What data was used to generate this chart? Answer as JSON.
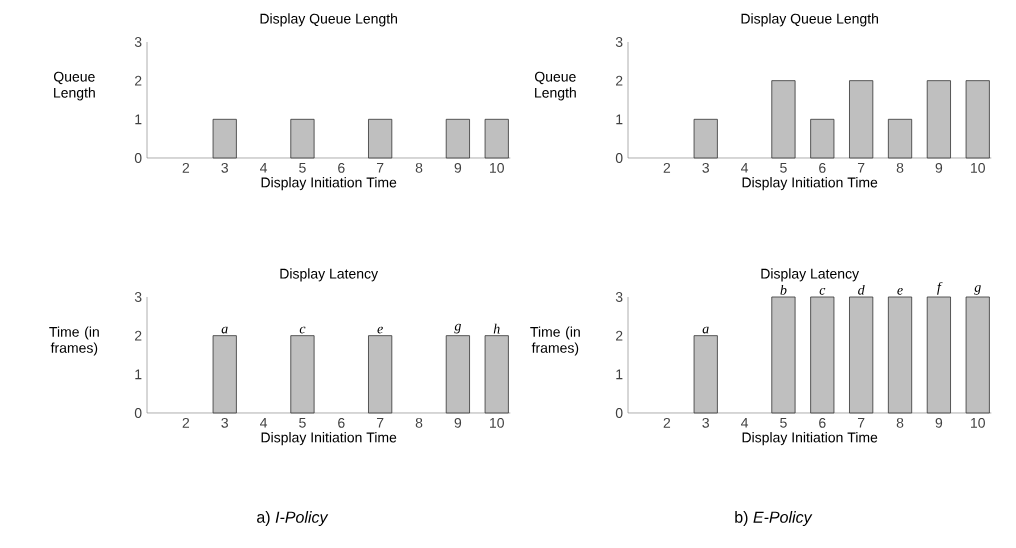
{
  "chart_data": [
    {
      "type": "bar",
      "title": "Display Queue Length",
      "xlabel": "Display Initiation Time",
      "ylabel": "Queue Length",
      "categories": [
        null,
        "2",
        "3",
        "4",
        "5",
        "6",
        "7",
        "8",
        "9",
        "10"
      ],
      "values": [
        null,
        null,
        1,
        null,
        1,
        null,
        1,
        null,
        1,
        1
      ],
      "color": "#bfbfbf",
      "ylim": [
        0,
        3
      ],
      "yticks": [
        0,
        1,
        2,
        3
      ]
    },
    {
      "type": "bar",
      "title": "Display Queue Length",
      "xlabel": "Display Initiation Time",
      "ylabel": "Queue Length",
      "categories": [
        null,
        "2",
        "3",
        "4",
        "5",
        "6",
        "7",
        "8",
        "9",
        "10"
      ],
      "values": [
        null,
        null,
        1,
        null,
        2,
        1,
        2,
        1,
        2,
        2
      ],
      "color": "#bfbfbf",
      "ylim": [
        0,
        3
      ],
      "yticks": [
        0,
        1,
        2,
        3
      ]
    },
    {
      "type": "bar",
      "title": "Display Latency",
      "xlabel": "Display Initiation Time",
      "ylabel": "Time (in frames)",
      "categories": [
        null,
        "2",
        "3",
        "4",
        "5",
        "6",
        "7",
        "8",
        "9",
        "10"
      ],
      "values": [
        null,
        null,
        2,
        null,
        2,
        null,
        2,
        null,
        2,
        2
      ],
      "color": "#bfbfbf",
      "ylim": [
        0,
        3
      ],
      "yticks": [
        0,
        1,
        2,
        3
      ],
      "annotations": [
        {
          "text": "a",
          "x": "3",
          "y": 2
        },
        {
          "text": "c",
          "x": "5",
          "y": 2
        },
        {
          "text": "e",
          "x": "7",
          "y": 2
        },
        {
          "text": "g",
          "x": "9",
          "y": 2
        },
        {
          "text": "h",
          "x": "10",
          "y": 2
        },
        "a) *I-Policy*"
      ]
    },
    {
      "type": "bar",
      "title": "Display Latency",
      "xlabel": "Display Initiation Time",
      "ylabel": "Time (in frames)",
      "categories": [
        null,
        "2",
        "3",
        "4",
        "5",
        "6",
        "7",
        "8",
        "9",
        "10"
      ],
      "values": [
        null,
        null,
        2,
        null,
        3,
        3,
        3,
        3,
        3,
        3
      ],
      "color": "#bfbfbf",
      "ylim": [
        0,
        3
      ],
      "yticks": [
        0,
        1,
        2,
        3
      ],
      "annotations": [
        {
          "text": "a",
          "x": "3",
          "y": 2
        },
        {
          "text": "b",
          "x": "5",
          "y": 3
        },
        {
          "text": "c",
          "x": "6",
          "y": 3
        },
        {
          "text": "d",
          "x": "7",
          "y": 3
        },
        {
          "text": "e",
          "x": "8",
          "y": 3
        },
        {
          "text": "f",
          "x": "9",
          "y": 3
        },
        {
          "text": "g",
          "x": "10",
          "y": 3
        },
        "b) *E-Policy*"
      ]
    }
  ]
}
